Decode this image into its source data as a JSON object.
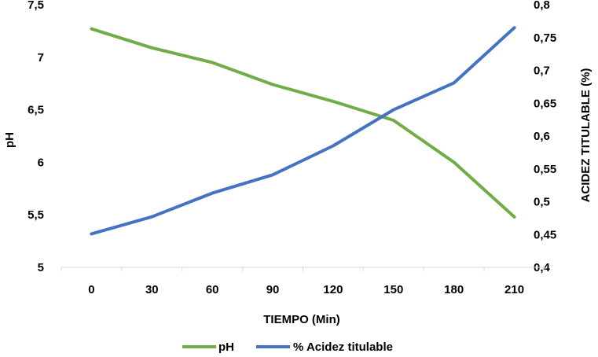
{
  "chart_data": {
    "type": "line",
    "categories": [
      "0",
      "30",
      "60",
      "90",
      "120",
      "150",
      "180",
      "210"
    ],
    "xlabel": "TIEMPO (Min)",
    "ylabel": "pH",
    "y2label": "ACIDEZ TITULABLE (%)",
    "ylim": [
      5,
      7.5
    ],
    "y2lim": [
      0.4,
      0.8
    ],
    "yticks": [
      "5",
      "5,5",
      "6",
      "6,5",
      "7",
      "7,5"
    ],
    "y2ticks": [
      "0,4",
      "0,45",
      "0,5",
      "0,55",
      "0,6",
      "0,65",
      "0,7",
      "0,75",
      "0,8"
    ],
    "grid": false,
    "legend_position": "bottom",
    "series": [
      {
        "name": "pH",
        "axis": "left",
        "color": "#70ad47",
        "values": [
          7.27,
          7.09,
          6.95,
          6.74,
          6.58,
          6.4,
          6.0,
          5.48
        ]
      },
      {
        "name": "% Acidez titulable",
        "axis": "right",
        "color": "#4472c4",
        "values": [
          0.451,
          0.477,
          0.513,
          0.541,
          0.585,
          0.64,
          0.681,
          0.765
        ]
      }
    ]
  }
}
